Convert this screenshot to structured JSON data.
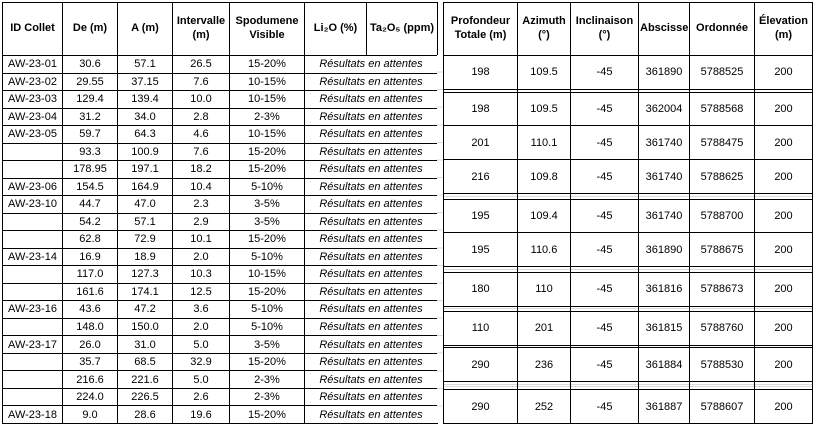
{
  "colors": {
    "background": "#ffffff",
    "text": "#000000",
    "table_border": "#000000",
    "gridline": "#dadada"
  },
  "left_table": {
    "headers": [
      "ID Collet",
      "De (m)",
      "A (m)",
      "Intervalle (m)",
      "Spodumene Visible",
      "Li₂O (%)",
      "Ta₂O₅ (ppm)"
    ],
    "rows": [
      [
        "AW-23-01",
        "30.6",
        "57.1",
        "26.5",
        "15-20%",
        "Résultats en attentes"
      ],
      [
        "AW-23-02",
        "29.55",
        "37.15",
        "7.6",
        "10-15%",
        "Résultats en attentes"
      ],
      [
        "AW-23-03",
        "129.4",
        "139.4",
        "10.0",
        "10-15%",
        "Résultats en attentes"
      ],
      [
        "AW-23-04",
        "31.2",
        "34.0",
        "2.8",
        "2-3%",
        "Résultats en attentes"
      ],
      [
        "AW-23-05",
        "59.7",
        "64.3",
        "4.6",
        "10-15%",
        "Résultats en attentes"
      ],
      [
        "",
        "93.3",
        "100.9",
        "7.6",
        "15-20%",
        "Résultats en attentes"
      ],
      [
        "",
        "178.95",
        "197.1",
        "18.2",
        "15-20%",
        "Résultats en attentes"
      ],
      [
        "AW-23-06",
        "154.5",
        "164.9",
        "10.4",
        "5-10%",
        "Résultats en attentes"
      ],
      [
        "AW-23-10",
        "44.7",
        "47.0",
        "2.3",
        "3-5%",
        "Résultats en attentes"
      ],
      [
        "",
        "54.2",
        "57.1",
        "2.9",
        "3-5%",
        "Résultats en attentes"
      ],
      [
        "",
        "62.8",
        "72.9",
        "10.1",
        "15-20%",
        "Résultats en attentes"
      ],
      [
        "AW-23-14",
        "16.9",
        "18.9",
        "2.0",
        "5-10%",
        "Résultats en attentes"
      ],
      [
        "",
        "117.0",
        "127.3",
        "10.3",
        "10-15%",
        "Résultats en attentes"
      ],
      [
        "",
        "161.6",
        "174.1",
        "12.5",
        "15-20%",
        "Résultats en attentes"
      ],
      [
        "AW-23-16",
        "43.6",
        "47.2",
        "3.6",
        "5-10%",
        "Résultats en attentes"
      ],
      [
        "",
        "148.0",
        "150.0",
        "2.0",
        "5-10%",
        "Résultats en attentes"
      ],
      [
        "AW-23-17",
        "26.0",
        "31.0",
        "5.0",
        "3-5%",
        "Résultats en attentes"
      ],
      [
        "",
        "35.7",
        "68.5",
        "32.9",
        "15-20%",
        "Résultats en attentes"
      ],
      [
        "",
        "216.6",
        "221.6",
        "5.0",
        "2-3%",
        "Résultats en attentes"
      ],
      [
        "",
        "224.0",
        "226.5",
        "2.6",
        "2-3%",
        "Résultats en attentes"
      ],
      [
        "AW-23-18",
        "9.0",
        "28.6",
        "19.6",
        "15-20%",
        "Résultats en attentes"
      ]
    ]
  },
  "right_table": {
    "headers": [
      "Profondeur Totale (m)",
      "Azimuth (°)",
      "Inclinaison (°)",
      "Abscisse",
      "Ordonnée",
      "Élevation (m)"
    ],
    "rows": [
      [
        "198",
        "109.5",
        "-45",
        "361890",
        "5788525",
        "200"
      ],
      [
        "",
        "",
        "",
        "",
        "",
        ""
      ],
      [
        "198",
        "109.5",
        "-45",
        "362004",
        "5788568",
        "200"
      ],
      [
        "201",
        "110.1",
        "-45",
        "361740",
        "5788475",
        "200"
      ],
      [
        "216",
        "109.8",
        "-45",
        "361740",
        "5788625",
        "200"
      ],
      [
        "",
        "",
        "",
        "",
        "",
        ""
      ],
      [
        "",
        "",
        "",
        "",
        "",
        ""
      ],
      [
        "195",
        "109.4",
        "-45",
        "361740",
        "5788700",
        "200"
      ],
      [
        "195",
        "110.6",
        "-45",
        "361890",
        "5788675",
        "200"
      ],
      [
        "",
        "",
        "",
        "",
        "",
        ""
      ],
      [
        "",
        "",
        "",
        "",
        "",
        ""
      ],
      [
        "180",
        "110",
        "-45",
        "361816",
        "5788673",
        "200"
      ],
      [
        "",
        "",
        "",
        "",
        "",
        ""
      ],
      [
        "",
        "",
        "",
        "",
        "",
        ""
      ],
      [
        "110",
        "201",
        "-45",
        "361815",
        "5788760",
        "200"
      ],
      [
        "",
        "",
        "",
        "",
        "",
        ""
      ],
      [
        "290",
        "236",
        "-45",
        "361884",
        "5788530",
        "200"
      ],
      [
        "",
        "",
        "",
        "",
        "",
        ""
      ],
      [
        "",
        "",
        "",
        "",
        "",
        ""
      ],
      [
        "",
        "",
        "",
        "",
        "",
        ""
      ],
      [
        "290",
        "252",
        "-45",
        "361887",
        "5788607",
        "200"
      ]
    ]
  }
}
